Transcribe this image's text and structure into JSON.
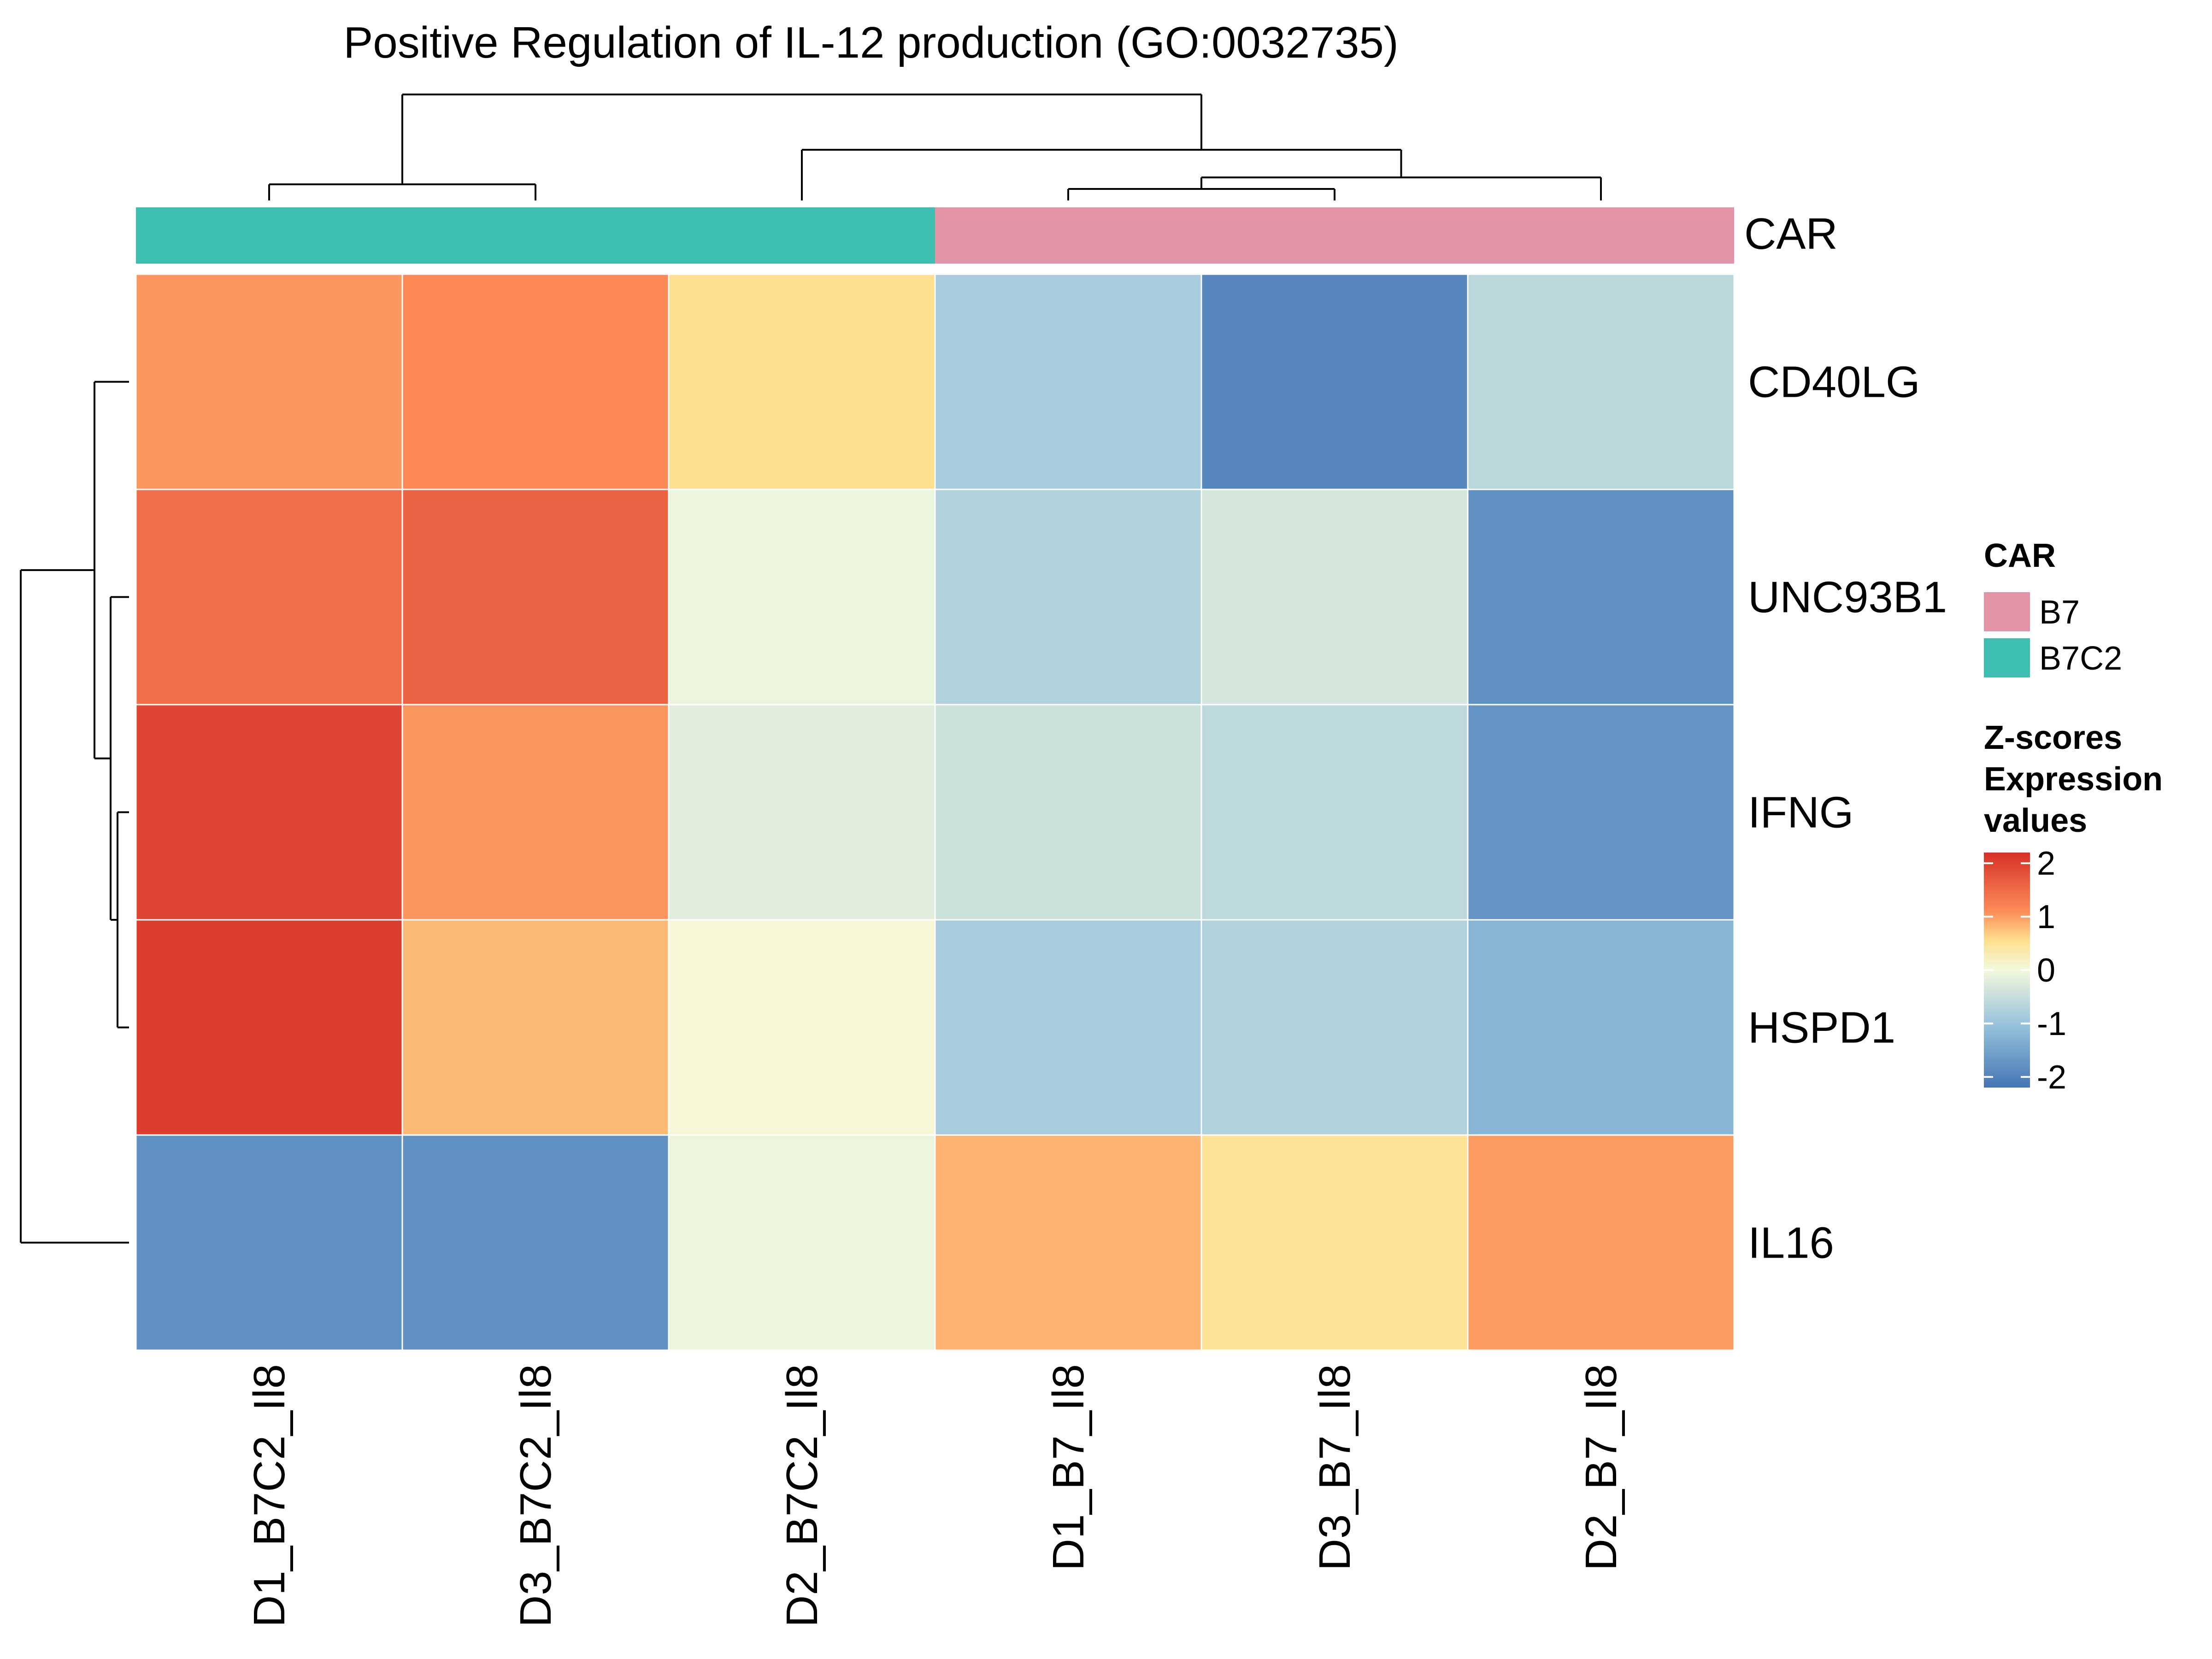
{
  "chart_data": {
    "type": "heatmap",
    "title": "Positive Regulation of IL-12 production (GO:0032735)",
    "columns": [
      "D1_B7C2_Il8",
      "D3_B7C2_Il8",
      "D2_B7C2_Il8",
      "D1_B7_Il8",
      "D3_B7_Il8",
      "D2_B7_Il8"
    ],
    "rows": [
      "CD40LG",
      "UNC93B1",
      "IFNG",
      "HSPD1",
      "IL16"
    ],
    "values": [
      [
        1.05,
        1.15,
        0.55,
        -0.85,
        -1.95,
        -0.65
      ],
      [
        1.45,
        1.6,
        -0.1,
        -0.75,
        -0.35,
        -1.8
      ],
      [
        1.95,
        1.05,
        -0.2,
        -0.45,
        -0.6,
        -1.75
      ],
      [
        2.05,
        0.8,
        0.05,
        -0.85,
        -0.75,
        -1.25
      ],
      [
        -1.8,
        -1.8,
        -0.1,
        0.85,
        0.5,
        1.0
      ]
    ],
    "annotation": {
      "name": "CAR",
      "column_groups": [
        "B7C2",
        "B7C2",
        "B7C2",
        "B7",
        "B7",
        "B7"
      ],
      "legend": [
        {
          "label": "B7",
          "color": "#E394A7"
        },
        {
          "label": "B7C2",
          "color": "#3CBEB1"
        }
      ]
    },
    "color_legend": {
      "title_lines": [
        "Z-scores",
        "Expression",
        "values"
      ],
      "ticks": [
        2,
        1,
        0,
        -1,
        -2
      ],
      "tick_labels": [
        "2",
        "1",
        "0",
        "-1",
        "-2"
      ],
      "range": [
        -2.2,
        2.2
      ],
      "stops": [
        {
          "value": -2.2,
          "color": "#4575B4"
        },
        {
          "value": -1.1,
          "color": "#91BFDB"
        },
        {
          "value": 0,
          "color": "#F4F9DD"
        },
        {
          "value": 0.55,
          "color": "#FEE090"
        },
        {
          "value": 1.1,
          "color": "#FC8D59"
        },
        {
          "value": 2.2,
          "color": "#D73027"
        }
      ]
    },
    "column_dendrogram": "((D1_B7C2_Il8,D3_B7C2_Il8),(D2_B7C2_Il8,(D1_B7_Il8,D3_B7_Il8),D2_B7_Il8))",
    "row_dendrogram": "((CD40LG,(UNC93B1,(IFNG,HSPD1))),IL16)"
  }
}
